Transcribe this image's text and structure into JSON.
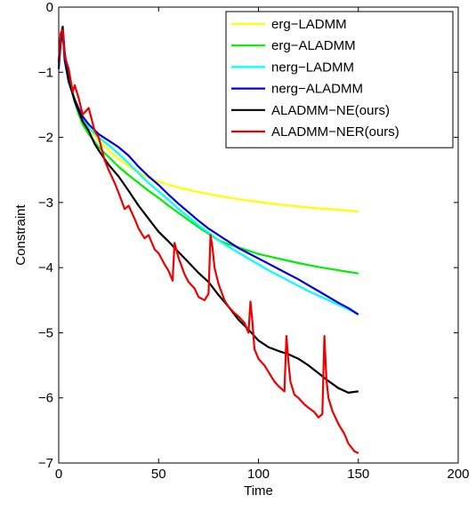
{
  "chart_data": {
    "type": "line",
    "title": "",
    "xlabel": "Time",
    "ylabel": "Constraint",
    "xlim": [
      0,
      200
    ],
    "ylim": [
      -7,
      0
    ],
    "xticks": [
      0,
      50,
      100,
      150,
      200
    ],
    "yticks": [
      0,
      -1,
      -2,
      -3,
      -4,
      -5,
      -6,
      -7
    ],
    "grid": false,
    "legend_position": "top-right",
    "series": [
      {
        "name": "erg−LADMM",
        "color": "#ffff00",
        "x": [
          0,
          1,
          2,
          3,
          5,
          8,
          10,
          12,
          15,
          20,
          25,
          30,
          35,
          40,
          45,
          50,
          60,
          70,
          80,
          90,
          100,
          110,
          120,
          130,
          140,
          150
        ],
        "y": [
          -0.95,
          -0.6,
          -0.42,
          -0.75,
          -1.15,
          -1.4,
          -1.55,
          -1.7,
          -1.85,
          -2.05,
          -2.2,
          -2.33,
          -2.44,
          -2.54,
          -2.62,
          -2.68,
          -2.77,
          -2.84,
          -2.9,
          -2.95,
          -2.99,
          -3.03,
          -3.06,
          -3.09,
          -3.11,
          -3.14
        ]
      },
      {
        "name": "erg−ALADMM",
        "color": "#00ee00",
        "x": [
          0,
          1,
          2,
          3,
          5,
          8,
          10,
          12,
          15,
          20,
          25,
          30,
          35,
          40,
          45,
          50,
          55,
          60,
          65,
          70,
          75,
          80,
          85,
          90,
          95,
          100,
          110,
          120,
          130,
          140,
          150
        ],
        "y": [
          -0.9,
          -0.55,
          -0.38,
          -0.7,
          -1.1,
          -1.45,
          -1.65,
          -1.8,
          -1.95,
          -2.15,
          -2.3,
          -2.45,
          -2.58,
          -2.7,
          -2.82,
          -2.93,
          -3.05,
          -3.16,
          -3.27,
          -3.38,
          -3.48,
          -3.58,
          -3.64,
          -3.69,
          -3.74,
          -3.79,
          -3.86,
          -3.93,
          -3.99,
          -4.04,
          -4.09
        ]
      },
      {
        "name": "nerg−LADMM",
        "color": "#00ffff",
        "x": [
          0,
          1,
          2,
          3,
          5,
          8,
          10,
          12,
          15,
          20,
          25,
          30,
          35,
          40,
          45,
          50,
          55,
          60,
          65,
          70,
          75,
          80,
          85,
          90,
          95,
          100,
          105,
          110,
          115,
          120,
          125,
          130,
          135,
          140,
          145,
          150
        ],
        "y": [
          -0.9,
          -0.5,
          -0.38,
          -0.8,
          -1.15,
          -1.45,
          -1.6,
          -1.72,
          -1.85,
          -2.0,
          -2.12,
          -2.25,
          -2.4,
          -2.55,
          -2.7,
          -2.83,
          -2.96,
          -3.1,
          -3.22,
          -3.35,
          -3.46,
          -3.58,
          -3.68,
          -3.77,
          -3.86,
          -3.95,
          -4.04,
          -4.12,
          -4.2,
          -4.28,
          -4.36,
          -4.43,
          -4.5,
          -4.57,
          -4.64,
          -4.72
        ]
      },
      {
        "name": "nerg−ALADMM",
        "color": "#0000dd",
        "x": [
          0,
          1,
          2,
          3,
          5,
          8,
          10,
          12,
          15,
          20,
          25,
          30,
          35,
          40,
          45,
          50,
          55,
          60,
          65,
          70,
          75,
          80,
          85,
          90,
          95,
          100,
          105,
          110,
          115,
          120,
          125,
          130,
          135,
          140,
          145,
          150
        ],
        "y": [
          -0.95,
          -0.55,
          -0.4,
          -0.82,
          -1.15,
          -1.42,
          -1.56,
          -1.68,
          -1.8,
          -1.95,
          -2.05,
          -2.15,
          -2.28,
          -2.45,
          -2.6,
          -2.73,
          -2.88,
          -3.02,
          -3.15,
          -3.28,
          -3.4,
          -3.5,
          -3.6,
          -3.7,
          -3.78,
          -3.86,
          -3.94,
          -4.02,
          -4.1,
          -4.18,
          -4.27,
          -4.36,
          -4.45,
          -4.54,
          -4.62,
          -4.72
        ]
      },
      {
        "name": "ALADMM−NE(ours)",
        "color": "#000000",
        "x": [
          0,
          1,
          2,
          3,
          5,
          8,
          10,
          12,
          15,
          18,
          20,
          25,
          30,
          35,
          40,
          45,
          50,
          55,
          60,
          65,
          70,
          75,
          80,
          85,
          90,
          95,
          100,
          105,
          110,
          115,
          120,
          125,
          130,
          135,
          140,
          145,
          150
        ],
        "y": [
          -0.85,
          -0.45,
          -0.3,
          -0.7,
          -1.1,
          -1.45,
          -1.6,
          -1.75,
          -1.9,
          -2.1,
          -2.2,
          -2.42,
          -2.6,
          -2.82,
          -3.05,
          -3.25,
          -3.45,
          -3.6,
          -3.76,
          -3.92,
          -4.08,
          -4.22,
          -4.42,
          -4.6,
          -4.8,
          -4.95,
          -5.12,
          -5.22,
          -5.28,
          -5.33,
          -5.4,
          -5.5,
          -5.62,
          -5.74,
          -5.85,
          -5.92,
          -5.9
        ]
      },
      {
        "name": "ALADMM−NER(ours)",
        "color": "#ee0000",
        "x": [
          0,
          1,
          2,
          3,
          5,
          7,
          8,
          10,
          12,
          15,
          18,
          20,
          23,
          25,
          28,
          30,
          33,
          35,
          38,
          40,
          43,
          45,
          48,
          50,
          53,
          55,
          57,
          58,
          60,
          63,
          65,
          68,
          70,
          73,
          75,
          76,
          77,
          78,
          80,
          83,
          85,
          88,
          90,
          93,
          95,
          96,
          97,
          98,
          100,
          103,
          105,
          108,
          110,
          113,
          114,
          115,
          116,
          118,
          120,
          123,
          125,
          128,
          130,
          132,
          133,
          134,
          135,
          137,
          140,
          143,
          145,
          148,
          150
        ],
        "y": [
          -0.85,
          -0.4,
          -0.35,
          -0.75,
          -0.95,
          -1.3,
          -1.2,
          -1.4,
          -1.65,
          -1.55,
          -1.9,
          -2.0,
          -2.35,
          -2.5,
          -2.7,
          -2.85,
          -3.1,
          -3.05,
          -3.25,
          -3.4,
          -3.55,
          -3.5,
          -3.72,
          -3.78,
          -3.95,
          -4.05,
          -4.2,
          -3.62,
          -3.85,
          -4.1,
          -4.22,
          -4.32,
          -4.45,
          -4.5,
          -4.4,
          -3.5,
          -3.7,
          -4.0,
          -4.25,
          -4.5,
          -4.6,
          -4.7,
          -4.75,
          -4.85,
          -5.0,
          -4.52,
          -4.85,
          -5.25,
          -5.4,
          -5.5,
          -5.6,
          -5.75,
          -5.82,
          -5.9,
          -5.05,
          -5.45,
          -5.75,
          -5.95,
          -6.0,
          -6.1,
          -6.15,
          -6.22,
          -6.3,
          -6.25,
          -5.05,
          -5.7,
          -6.0,
          -6.2,
          -6.4,
          -6.55,
          -6.7,
          -6.82,
          -6.85
        ]
      }
    ]
  }
}
